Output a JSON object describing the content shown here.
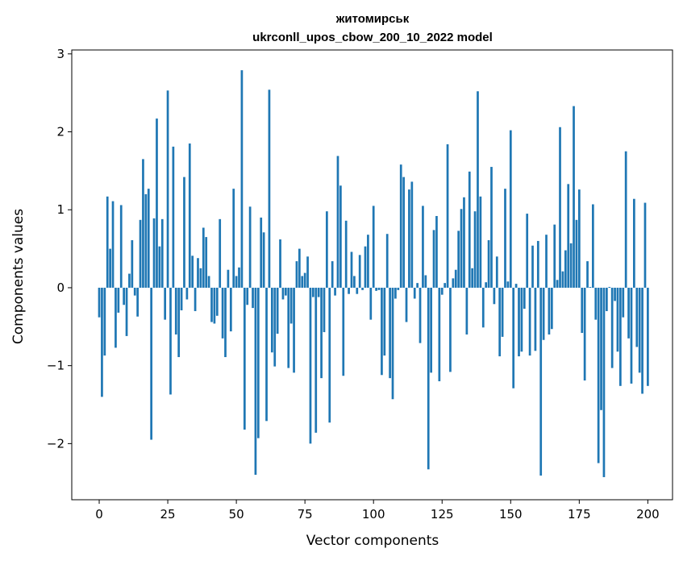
{
  "chart_data": {
    "type": "bar",
    "title": "житомирськ",
    "subtitle": "ukrconll_upos_cbow_200_10_2022 model",
    "xlabel": "Vector components",
    "ylabel": "Components values",
    "xlim": [
      -10,
      209
    ],
    "ylim": [
      -2.72,
      3.05
    ],
    "xticks": [
      0,
      25,
      50,
      75,
      100,
      125,
      150,
      175,
      200
    ],
    "yticks": [
      -2,
      -1,
      0,
      1,
      2,
      3
    ],
    "ytick_labels": [
      "−2",
      "−1",
      "0",
      "1",
      "2",
      "3"
    ],
    "bar_color": "#1f77b4",
    "grid": false,
    "values": [
      -0.38,
      -1.4,
      -0.87,
      1.17,
      0.5,
      1.11,
      -0.77,
      -0.32,
      1.06,
      -0.22,
      -0.62,
      0.18,
      0.61,
      -0.1,
      -0.37,
      0.87,
      1.65,
      1.2,
      1.27,
      -1.95,
      0.89,
      2.17,
      0.53,
      0.88,
      -0.41,
      2.53,
      -1.37,
      1.81,
      -0.6,
      -0.89,
      -0.29,
      1.42,
      -0.15,
      1.85,
      0.41,
      -0.3,
      0.38,
      0.25,
      0.77,
      0.65,
      0.15,
      -0.44,
      -0.46,
      -0.36,
      0.88,
      -0.65,
      -0.89,
      0.23,
      -0.56,
      1.27,
      0.15,
      0.26,
      2.79,
      -1.82,
      -0.22,
      1.04,
      -0.26,
      -2.4,
      -1.93,
      0.9,
      0.71,
      -1.71,
      2.54,
      -0.83,
      -1.01,
      -0.59,
      0.62,
      -0.15,
      -0.1,
      -1.03,
      -0.46,
      -1.09,
      0.34,
      0.5,
      0.15,
      0.19,
      0.4,
      -2.0,
      -0.12,
      -1.86,
      -0.12,
      -1.16,
      -0.57,
      0.98,
      -1.73,
      0.34,
      -0.1,
      1.69,
      1.31,
      -1.13,
      0.86,
      -0.08,
      0.46,
      0.15,
      -0.08,
      0.42,
      -0.03,
      0.53,
      0.68,
      -0.41,
      1.05,
      -0.04,
      -0.03,
      -1.12,
      -0.87,
      0.69,
      -1.16,
      -1.43,
      -0.14,
      -0.03,
      1.58,
      1.42,
      -0.44,
      1.26,
      1.36,
      -0.14,
      0.06,
      -0.71,
      1.05,
      0.16,
      -2.33,
      -1.09,
      0.74,
      0.92,
      -1.2,
      -0.09,
      0.06,
      1.84,
      -1.08,
      0.12,
      0.23,
      0.73,
      1.01,
      1.16,
      -0.6,
      1.49,
      0.25,
      0.98,
      2.52,
      1.17,
      -0.51,
      0.07,
      0.61,
      1.55,
      -0.21,
      0.4,
      -0.88,
      -0.63,
      1.27,
      0.08,
      2.02,
      -1.29,
      0.05,
      -0.88,
      -0.82,
      -0.27,
      0.95,
      -0.87,
      0.54,
      -0.81,
      0.6,
      -2.41,
      -0.67,
      0.68,
      -0.6,
      -0.53,
      0.81,
      0.1,
      2.06,
      0.21,
      0.48,
      1.33,
      0.57,
      2.33,
      0.87,
      1.26,
      -0.58,
      -1.19,
      0.34,
      0.01,
      1.07,
      -0.41,
      -2.25,
      -1.57,
      -2.43,
      -0.3,
      0.01,
      -1.03,
      -0.17,
      -0.82,
      -1.26,
      -0.38,
      1.75,
      -0.65,
      -1.23,
      1.14,
      -0.76,
      -1.09,
      -1.36,
      1.09,
      -1.26
    ]
  }
}
